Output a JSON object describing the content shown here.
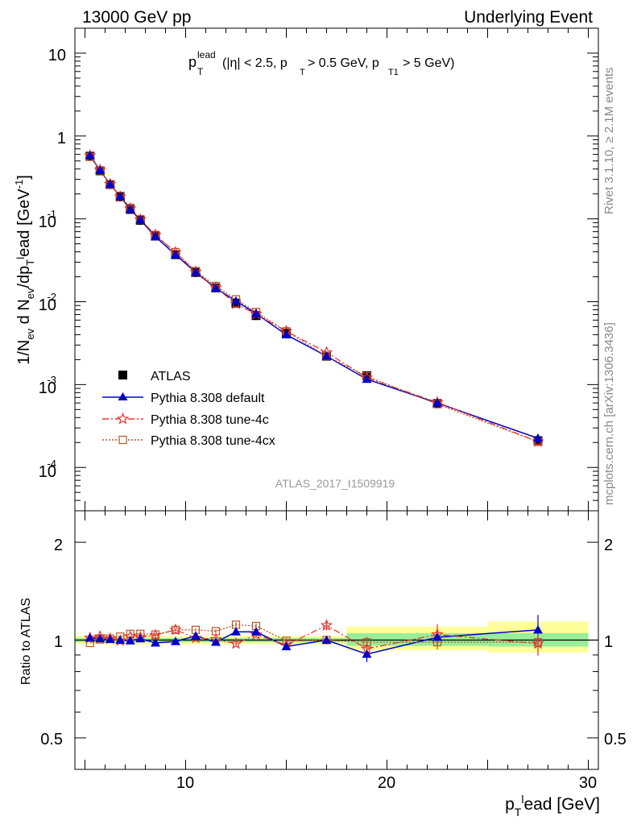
{
  "header": {
    "left": "13000 GeV pp",
    "right": "Underlying Event"
  },
  "plot_title": "p_T^lead (|η| < 2.5, p_T > 0.5 GeV, p_T1 > 5 GeV)",
  "side_labels": {
    "rivet": "Rivet 3.1.10, ≥ 2.1M events",
    "source": "mcplots.cern.ch [arXiv:1306.3436]"
  },
  "analysis_id": "ATLAS_2017_I1509919",
  "axes": {
    "main_ylabel": "1/N_ev d N_ev/dp_T^lead [GeV^-1]",
    "ratio_ylabel": "Ratio to ATLAS",
    "xlabel": "p_T^lead [GeV]",
    "x_ticks": [
      "10",
      "20",
      "30"
    ],
    "main_y_ticks": [
      "10",
      "1",
      "10^-1",
      "10^-2",
      "10^-3",
      "10^-4"
    ],
    "ratio_y_ticks": [
      "2",
      "1",
      "0.5"
    ]
  },
  "legend": [
    {
      "name": "ATLAS",
      "color": "#000000",
      "marker": "filled-square"
    },
    {
      "name": "Pythia 8.308 default",
      "color": "#0000cc",
      "marker": "filled-triangle"
    },
    {
      "name": "Pythia 8.308 tune-4c",
      "color": "#ee3333",
      "marker": "open-star"
    },
    {
      "name": "Pythia 8.308 tune-4cx",
      "color": "#bb5522",
      "marker": "open-square"
    }
  ],
  "chart_data": {
    "type": "line",
    "x": [
      5.25,
      5.75,
      6.25,
      6.75,
      7.25,
      7.75,
      8.5,
      9.5,
      10.5,
      11.5,
      12.5,
      13.5,
      15,
      17,
      19,
      22.5,
      27.5
    ],
    "xlim": [
      4.5,
      30.5
    ],
    "main": {
      "ylog": true,
      "ylim": [
        3e-05,
        20
      ],
      "series": [
        {
          "name": "ATLAS",
          "values": [
            0.57,
            0.38,
            0.26,
            0.185,
            0.13,
            0.096,
            0.062,
            0.037,
            0.0225,
            0.0147,
            0.0096,
            0.0068,
            0.0042,
            0.0022,
            0.00128,
            0.00059,
            0.00021
          ]
        },
        {
          "name": "Pythia 8.308 default",
          "values": [
            0.58,
            0.385,
            0.262,
            0.186,
            0.13,
            0.097,
            0.061,
            0.0368,
            0.0227,
            0.0145,
            0.0102,
            0.0072,
            0.004,
            0.0022,
            0.00116,
            0.0006,
            0.000225
          ]
        },
        {
          "name": "Pythia 8.308 tune-4c",
          "values": [
            0.58,
            0.39,
            0.262,
            0.185,
            0.133,
            0.098,
            0.064,
            0.0395,
            0.0228,
            0.0148,
            0.0094,
            0.0071,
            0.0044,
            0.00245,
            0.00121,
            0.00061,
            0.000205
          ]
        },
        {
          "name": "Pythia 8.308 tune-4cx",
          "values": [
            0.56,
            0.385,
            0.262,
            0.19,
            0.136,
            0.099,
            0.064,
            0.0397,
            0.0235,
            0.0155,
            0.0107,
            0.0075,
            0.0044,
            0.0022,
            0.00126,
            0.00058,
            0.000204
          ]
        }
      ]
    },
    "ratio": {
      "ylog": true,
      "ylim": [
        0.4,
        2.5
      ],
      "reference": 1,
      "band_segments": [
        {
          "x0": 4.5,
          "x1": 18,
          "green": [
            0.985,
            1.015
          ],
          "yellow": [
            0.97,
            1.03
          ]
        },
        {
          "x0": 18,
          "x1": 25,
          "green": [
            0.96,
            1.05
          ],
          "yellow": [
            0.93,
            1.1
          ]
        },
        {
          "x0": 25,
          "x1": 30,
          "green": [
            0.955,
            1.05
          ],
          "yellow": [
            0.915,
            1.14
          ]
        }
      ],
      "series": [
        {
          "name": "Pythia 8.308 default",
          "values": [
            1.015,
            1.01,
            1.005,
            1.0,
            0.995,
            1.01,
            0.98,
            0.99,
            1.03,
            0.985,
            1.06,
            1.06,
            0.955,
            1.0,
            0.905,
            1.02,
            1.075
          ],
          "errors": [
            0.005,
            0.005,
            0.005,
            0.005,
            0.005,
            0.005,
            0.005,
            0.005,
            0.01,
            0.01,
            0.01,
            0.02,
            0.02,
            0.03,
            0.05,
            0.06,
            0.12
          ]
        },
        {
          "name": "Pythia 8.308 tune-4c",
          "values": [
            1.015,
            1.025,
            1.01,
            0.995,
            1.025,
            1.02,
            1.035,
            1.075,
            1.015,
            1.005,
            0.975,
            1.04,
            0.965,
            1.11,
            0.94,
            1.04,
            0.975
          ],
          "errors": [
            0.005,
            0.005,
            0.005,
            0.005,
            0.005,
            0.005,
            0.01,
            0.01,
            0.01,
            0.015,
            0.02,
            0.02,
            0.02,
            0.04,
            0.04,
            0.08,
            0.08
          ]
        },
        {
          "name": "Pythia 8.308 tune-4cx",
          "values": [
            0.98,
            1.005,
            1.01,
            1.025,
            1.045,
            1.045,
            1.04,
            1.075,
            1.075,
            1.065,
            1.115,
            1.105,
            0.995,
            1.0,
            0.985,
            0.985,
            0.985
          ],
          "errors": [
            0.005,
            0.005,
            0.005,
            0.005,
            0.005,
            0.005,
            0.01,
            0.01,
            0.01,
            0.015,
            0.02,
            0.02,
            0.02,
            0.03,
            0.04,
            0.05,
            0.06
          ]
        }
      ]
    }
  }
}
